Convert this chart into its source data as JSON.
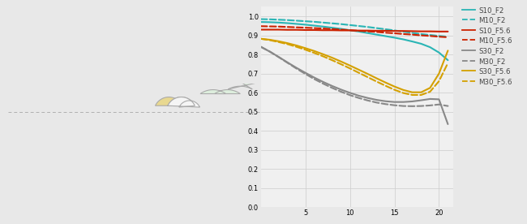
{
  "bg_color": "#e8e8e8",
  "plot_bg": "#f0f0f0",
  "grid_color": "#cccccc",
  "yticks": [
    0,
    0.1,
    0.2,
    0.3,
    0.4,
    0.5,
    0.6,
    0.7,
    0.8,
    0.9,
    1.0
  ],
  "xticks": [
    5,
    10,
    15,
    20
  ],
  "xlim": [
    0,
    21.6
  ],
  "ylim": [
    0,
    1.05
  ],
  "lines": {
    "S10_F2": {
      "color": "#2ab5b5",
      "dash": "solid",
      "lw": 1.5,
      "x": [
        0,
        1,
        2,
        3,
        4,
        5,
        6,
        7,
        8,
        9,
        10,
        11,
        12,
        13,
        14,
        15,
        16,
        17,
        18,
        19,
        20,
        21
      ],
      "y": [
        0.97,
        0.969,
        0.967,
        0.964,
        0.96,
        0.956,
        0.951,
        0.946,
        0.94,
        0.934,
        0.927,
        0.92,
        0.912,
        0.904,
        0.896,
        0.888,
        0.879,
        0.868,
        0.856,
        0.838,
        0.81,
        0.77
      ]
    },
    "M10_F2": {
      "color": "#2ab5b5",
      "dash": "dashed",
      "lw": 1.5,
      "x": [
        0,
        1,
        2,
        3,
        4,
        5,
        6,
        7,
        8,
        9,
        10,
        11,
        12,
        13,
        14,
        15,
        16,
        17,
        18,
        19,
        20,
        21
      ],
      "y": [
        0.985,
        0.984,
        0.982,
        0.98,
        0.977,
        0.974,
        0.971,
        0.967,
        0.963,
        0.959,
        0.954,
        0.949,
        0.944,
        0.938,
        0.932,
        0.926,
        0.919,
        0.913,
        0.907,
        0.902,
        0.897,
        0.893
      ]
    },
    "S10_F5.6": {
      "color": "#cc2200",
      "dash": "solid",
      "lw": 1.5,
      "x": [
        0,
        1,
        2,
        3,
        4,
        5,
        6,
        7,
        8,
        9,
        10,
        11,
        12,
        13,
        14,
        15,
        16,
        17,
        18,
        19,
        20,
        21
      ],
      "y": [
        0.93,
        0.93,
        0.93,
        0.929,
        0.929,
        0.928,
        0.928,
        0.927,
        0.927,
        0.926,
        0.926,
        0.925,
        0.925,
        0.924,
        0.924,
        0.923,
        0.923,
        0.922,
        0.921,
        0.921,
        0.92,
        0.92
      ]
    },
    "M10_F5.6": {
      "color": "#cc2200",
      "dash": "dashed",
      "lw": 1.5,
      "x": [
        0,
        1,
        2,
        3,
        4,
        5,
        6,
        7,
        8,
        9,
        10,
        11,
        12,
        13,
        14,
        15,
        16,
        17,
        18,
        19,
        20,
        21
      ],
      "y": [
        0.948,
        0.947,
        0.946,
        0.944,
        0.942,
        0.94,
        0.938,
        0.936,
        0.933,
        0.93,
        0.927,
        0.924,
        0.921,
        0.918,
        0.914,
        0.911,
        0.907,
        0.904,
        0.9,
        0.897,
        0.893,
        0.89
      ]
    },
    "S30_F2": {
      "color": "#888888",
      "dash": "solid",
      "lw": 1.5,
      "x": [
        0,
        1,
        2,
        3,
        4,
        5,
        6,
        7,
        8,
        9,
        10,
        11,
        12,
        13,
        14,
        15,
        16,
        17,
        18,
        19,
        20,
        21
      ],
      "y": [
        0.84,
        0.815,
        0.787,
        0.758,
        0.73,
        0.704,
        0.679,
        0.656,
        0.635,
        0.616,
        0.599,
        0.584,
        0.572,
        0.562,
        0.555,
        0.551,
        0.551,
        0.554,
        0.56,
        0.567,
        0.565,
        0.435
      ]
    },
    "M30_F2": {
      "color": "#888888",
      "dash": "dashed",
      "lw": 1.5,
      "x": [
        0,
        1,
        2,
        3,
        4,
        5,
        6,
        7,
        8,
        9,
        10,
        11,
        12,
        13,
        14,
        15,
        16,
        17,
        18,
        19,
        20,
        21
      ],
      "y": [
        0.84,
        0.815,
        0.786,
        0.756,
        0.726,
        0.698,
        0.671,
        0.647,
        0.625,
        0.605,
        0.587,
        0.572,
        0.559,
        0.548,
        0.54,
        0.534,
        0.53,
        0.529,
        0.53,
        0.533,
        0.538,
        0.53
      ]
    },
    "S30_F5.6": {
      "color": "#d4a000",
      "dash": "solid",
      "lw": 1.5,
      "x": [
        0,
        1,
        2,
        3,
        4,
        5,
        6,
        7,
        8,
        9,
        10,
        11,
        12,
        13,
        14,
        15,
        16,
        17,
        18,
        19,
        20,
        21
      ],
      "y": [
        0.882,
        0.877,
        0.869,
        0.859,
        0.847,
        0.833,
        0.818,
        0.801,
        0.783,
        0.763,
        0.742,
        0.72,
        0.698,
        0.675,
        0.653,
        0.632,
        0.614,
        0.602,
        0.602,
        0.625,
        0.7,
        0.82
      ]
    },
    "M30_F5.6": {
      "color": "#d4a000",
      "dash": "dashed",
      "lw": 1.5,
      "x": [
        0,
        1,
        2,
        3,
        4,
        5,
        6,
        7,
        8,
        9,
        10,
        11,
        12,
        13,
        14,
        15,
        16,
        17,
        18,
        19,
        20,
        21
      ],
      "y": [
        0.882,
        0.875,
        0.865,
        0.854,
        0.84,
        0.825,
        0.808,
        0.79,
        0.77,
        0.749,
        0.727,
        0.704,
        0.681,
        0.658,
        0.636,
        0.615,
        0.598,
        0.588,
        0.588,
        0.605,
        0.66,
        0.755
      ]
    }
  },
  "legend_order": [
    "S10_F2",
    "M10_F2",
    "S10_F5.6",
    "M10_F5.6",
    "S30_F2",
    "M30_F2",
    "S30_F5.6",
    "M30_F5.6"
  ],
  "legend_labels": {
    "S10_F2": "S10_F2",
    "M10_F2": "M10_F2",
    "S10_F5.6": "S10_F5.6",
    "M10_F5.6": "M10_F5.6",
    "S30_F2": "S30_F2",
    "M30_F2": "M30_F2",
    "S30_F5.6": "S30_F5.6",
    "M30_F5.6": "M30_F5.6"
  },
  "lens_fill_clear": "#f5f5f5",
  "lens_fill_green": "#ddeedd",
  "lens_fill_yellow": "#e8d890",
  "lens_edge": "#aaaaaa",
  "axis_color": "#b0b0b0"
}
